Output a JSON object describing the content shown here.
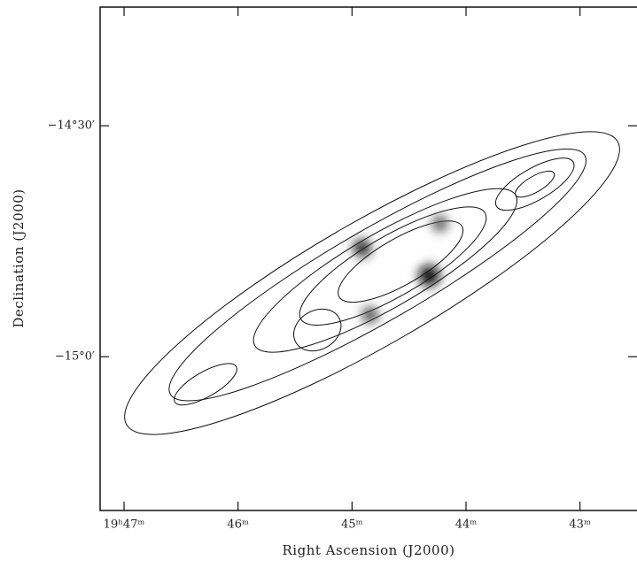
{
  "chart_data": {
    "type": "image",
    "x_label": "Right Ascension (J2000)",
    "y_label": "Declination (J2000)",
    "xlim": [
      47.21,
      42.5
    ],
    "xticks": [
      {
        "value": 47,
        "label": "19ʰ47ᵐ"
      },
      {
        "value": 46,
        "label": "46ᵐ"
      },
      {
        "value": 45,
        "label": "45ᵐ"
      },
      {
        "value": 44,
        "label": "44ᵐ"
      },
      {
        "value": 43,
        "label": "43ᵐ"
      }
    ],
    "ylim": [
      -15.333,
      -14.243
    ],
    "yticks": [
      {
        "value": -14.5,
        "label": "−14°30′"
      },
      {
        "value": -15,
        "label": "−15°0′"
      }
    ]
  }
}
